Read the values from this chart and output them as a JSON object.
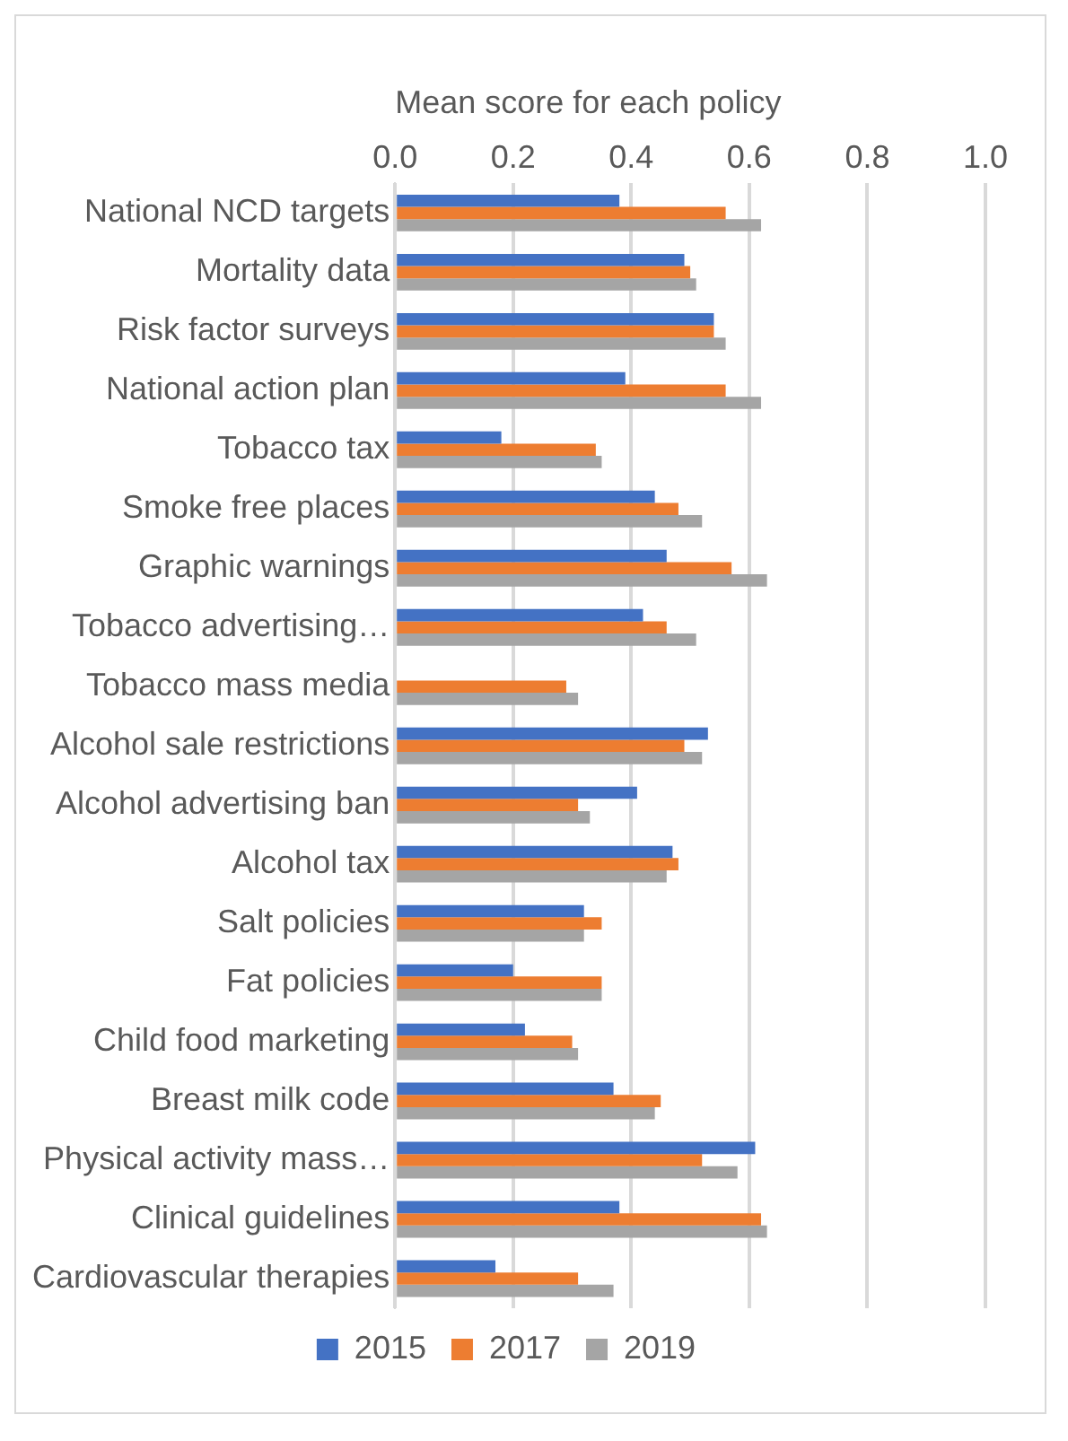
{
  "chart_data": {
    "type": "bar",
    "orientation": "horizontal",
    "xlabel": "Mean score for each policy",
    "categories": [
      "National NCD targets",
      "Mortality data",
      "Risk factor surveys",
      "National action plan",
      "Tobacco tax",
      "Smoke free places",
      "Graphic warnings",
      "Tobacco advertising…",
      "Tobacco mass media",
      "Alcohol sale restrictions",
      "Alcohol advertising ban",
      "Alcohol tax",
      "Salt policies",
      "Fat policies",
      "Child food marketing",
      "Breast milk code",
      "Physical activity mass…",
      "Clinical guidelines",
      "Cardiovascular therapies"
    ],
    "series": [
      {
        "name": "2015",
        "color": "#4472c4",
        "values": [
          0.38,
          0.49,
          0.54,
          0.39,
          0.18,
          0.44,
          0.46,
          0.42,
          0,
          0.53,
          0.41,
          0.47,
          0.32,
          0.2,
          0.22,
          0.37,
          0.61,
          0.38,
          0.17
        ]
      },
      {
        "name": "2017",
        "color": "#ed7d31",
        "values": [
          0.56,
          0.5,
          0.54,
          0.56,
          0.34,
          0.48,
          0.57,
          0.46,
          0.29,
          0.49,
          0.31,
          0.48,
          0.35,
          0.35,
          0.3,
          0.45,
          0.52,
          0.62,
          0.31
        ]
      },
      {
        "name": "2019",
        "color": "#a5a5a5",
        "values": [
          0.62,
          0.51,
          0.56,
          0.62,
          0.35,
          0.52,
          0.63,
          0.51,
          0.31,
          0.52,
          0.33,
          0.46,
          0.32,
          0.35,
          0.31,
          0.44,
          0.58,
          0.63,
          0.37
        ]
      }
    ],
    "xlim": [
      0,
      1
    ],
    "xticks": [
      {
        "value": 0,
        "label": "0.0"
      },
      {
        "value": 0.2,
        "label": "0.2"
      },
      {
        "value": 0.4,
        "label": "0.4"
      },
      {
        "value": 0.6,
        "label": "0.6"
      },
      {
        "value": 0.8,
        "label": "0.8"
      },
      {
        "value": 1,
        "label": "1.0"
      }
    ],
    "grid": "x",
    "legend": "bottom"
  }
}
